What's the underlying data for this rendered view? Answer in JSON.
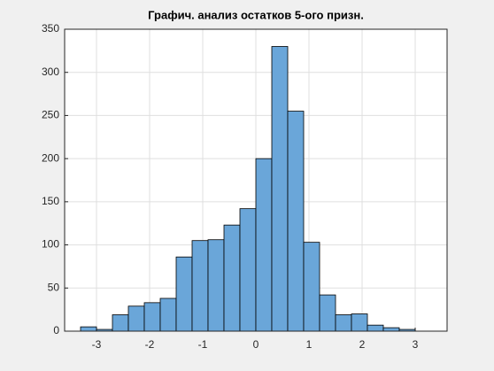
{
  "chart_data": {
    "type": "histogram",
    "title": "Графич. анализ остатков 5-ого призн.",
    "bins": [
      -3.3,
      -3.0,
      -2.7,
      -2.4,
      -2.1,
      -1.8,
      -1.5,
      -1.2,
      -0.9,
      -0.6,
      -0.3,
      0,
      0.3,
      0.6,
      0.9,
      1.2,
      1.5,
      1.8,
      2.1,
      2.4,
      2.7,
      3.0
    ],
    "values": [
      5,
      2,
      19,
      29,
      33,
      38,
      86,
      105,
      106,
      123,
      142,
      200,
      330,
      255,
      103,
      42,
      19,
      20,
      7,
      4,
      2
    ],
    "color": "#6aa6d9",
    "xlim": [
      -3.6,
      3.6
    ],
    "xticks": [
      -3,
      -2,
      -1,
      0,
      1,
      2,
      3
    ],
    "ylim": [
      0,
      350
    ],
    "yticks": [
      0,
      50,
      100,
      150,
      200,
      250,
      300,
      350
    ],
    "grid": true
  }
}
